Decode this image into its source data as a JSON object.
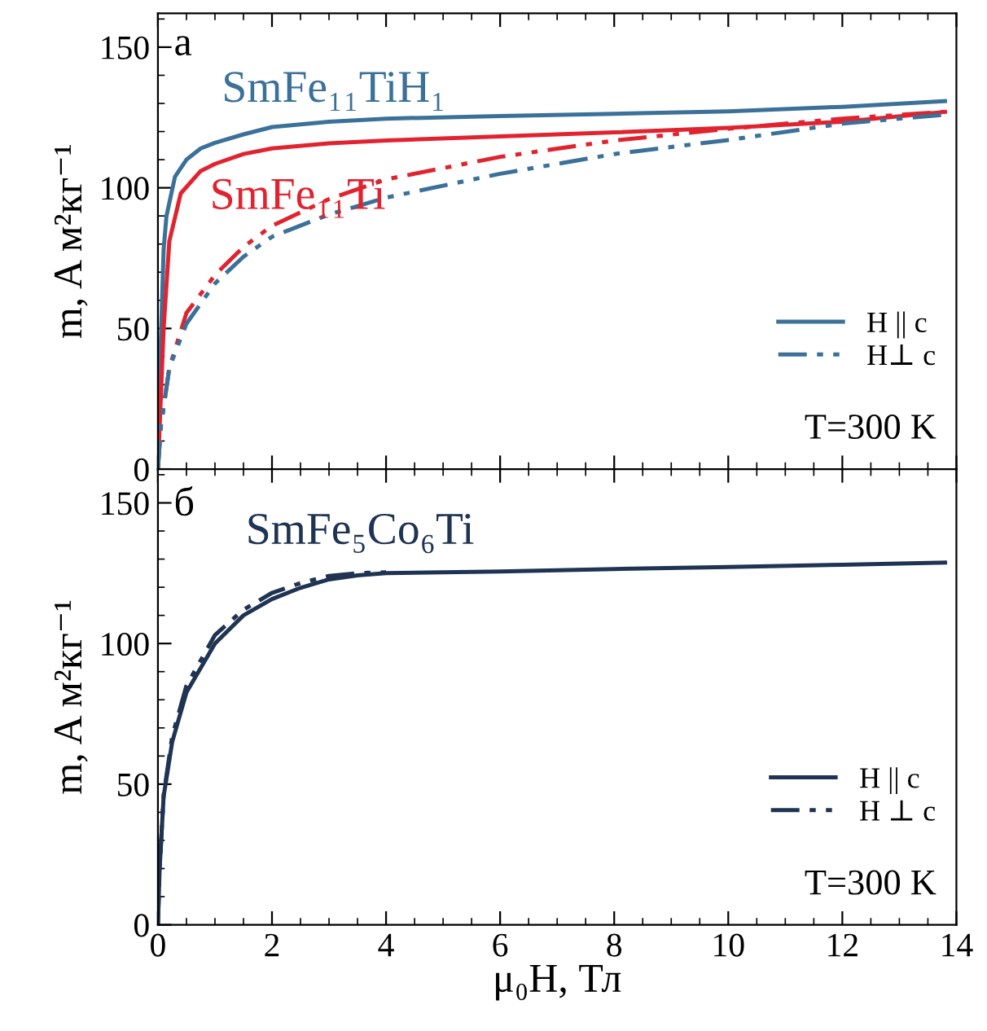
{
  "chart_data": [
    {
      "type": "line",
      "xlim": [
        0,
        14
      ],
      "ylim": [
        0,
        162
      ],
      "xticks": [
        0,
        2,
        4,
        6,
        8,
        10,
        12,
        14
      ],
      "yticks": [
        0,
        50,
        100,
        150
      ],
      "tick_labels": "y",
      "ylabel": "m, A м²кг⁻¹",
      "legend": "bottom right",
      "grid": false,
      "series": [
        {
          "name": "H || c",
          "color": "#3b7199",
          "line_style": "solid",
          "x": [
            0,
            0.05,
            0.1,
            0.15,
            0.3,
            0.5,
            0.75,
            1,
            1.5,
            2,
            3,
            4,
            6,
            8,
            10,
            12,
            13.8
          ],
          "values": [
            0,
            45,
            78,
            90,
            104,
            110,
            114,
            116,
            119,
            121.6,
            123.5,
            124.6,
            125.5,
            126.3,
            127.2,
            128.8,
            130.8
          ]
        },
        {
          "color": "#e1232f",
          "line_style": "solid",
          "x": [
            0,
            0.05,
            0.1,
            0.2,
            0.4,
            0.75,
            1,
            1.5,
            2,
            3,
            4,
            6,
            8,
            10,
            12,
            13.8
          ],
          "values": [
            0,
            25,
            50,
            81,
            98,
            106,
            108.5,
            112,
            114,
            115.8,
            116.8,
            118.3,
            119.7,
            121.3,
            123.5,
            127
          ]
        },
        {
          "color": "#e1232f",
          "line_style": "dashdot",
          "x": [
            0,
            0.05,
            0.2,
            0.5,
            1,
            1.5,
            2,
            3,
            4,
            6,
            8,
            10,
            12,
            13.8
          ],
          "values": [
            0,
            15,
            36,
            55.5,
            69,
            79,
            86.5,
            96,
            103,
            111,
            116.8,
            121,
            124.6,
            127
          ]
        },
        {
          "name": "H⊥ c",
          "color": "#3b7199",
          "line_style": "dashdot",
          "x": [
            0,
            0.05,
            0.2,
            0.5,
            1,
            1.5,
            2,
            3,
            4,
            6,
            8,
            10,
            12,
            13.8
          ],
          "values": [
            0,
            15,
            36,
            51.7,
            66,
            75.5,
            82.6,
            90.5,
            96.5,
            105,
            112,
            117,
            122.8,
            126
          ]
        }
      ],
      "annotations": [
        "a",
        "SmFe₁₁TiH₁",
        "SmFe₁₁Ti",
        "T=300 K"
      ]
    },
    {
      "type": "line",
      "xlim": [
        0,
        14
      ],
      "ylim": [
        0,
        162
      ],
      "xticks": [
        0,
        2,
        4,
        6,
        8,
        10,
        12,
        14
      ],
      "yticks": [
        0,
        50,
        100,
        150
      ],
      "xlabel": "μ₀H, Тл",
      "ylabel": "m, A м²кг⁻¹",
      "legend": "bottom right",
      "grid": false,
      "series": [
        {
          "name": "H || c",
          "color": "#1f3352",
          "line_style": "solid",
          "x": [
            0,
            0.03,
            0.1,
            0.25,
            0.5,
            1,
            1.5,
            2,
            2.5,
            3,
            3.5,
            4,
            6,
            8,
            10,
            12,
            13.8
          ],
          "values": [
            0,
            20,
            45.6,
            65,
            82.6,
            100,
            110,
            115.8,
            119.8,
            122.8,
            124.2,
            125,
            125.6,
            126.5,
            127.2,
            128,
            128.8
          ]
        },
        {
          "name": "H ⊥ c",
          "color": "#1f3352",
          "line_style": "dashdot",
          "x": [
            0,
            0.03,
            0.1,
            0.25,
            0.5,
            1,
            1.5,
            2,
            2.5,
            3,
            3.5,
            4
          ],
          "values": [
            0,
            20,
            46,
            67,
            85,
            103,
            112,
            118,
            121.5,
            124,
            125,
            125.3
          ]
        }
      ],
      "annotations": [
        "б",
        "SmFe₅Co₆Ti",
        "T=300 K"
      ]
    }
  ]
}
